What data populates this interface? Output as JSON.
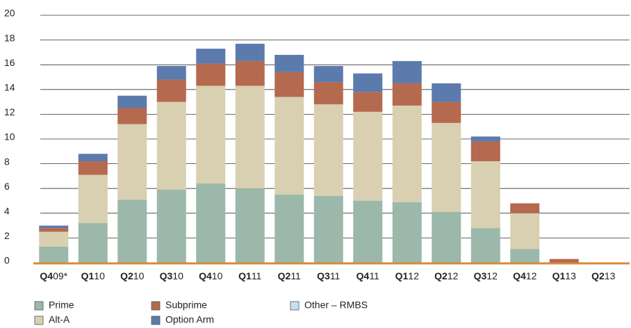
{
  "chart_data": {
    "type": "stacked_bar",
    "categories": [
      "Q409*",
      "Q110",
      "Q210",
      "Q310",
      "Q410",
      "Q111",
      "Q211",
      "Q311",
      "Q411",
      "Q112",
      "Q212",
      "Q312",
      "Q412",
      "Q113",
      "Q213"
    ],
    "series": [
      {
        "name": "Prime",
        "color": "#9bb8aa",
        "values": [
          1.3,
          3.2,
          5.1,
          5.9,
          6.4,
          6.0,
          5.5,
          5.4,
          5.0,
          4.9,
          4.1,
          2.8,
          1.1,
          0,
          0
        ]
      },
      {
        "name": "Alt-A",
        "color": "#d8d0b0",
        "values": [
          1.2,
          3.9,
          6.1,
          7.1,
          7.9,
          8.3,
          7.9,
          7.4,
          7.2,
          7.8,
          7.2,
          5.4,
          2.9,
          0,
          0
        ]
      },
      {
        "name": "Subprime",
        "color": "#b5694f",
        "values": [
          0.3,
          1.1,
          1.3,
          1.8,
          1.8,
          2.0,
          2.0,
          1.8,
          1.6,
          1.8,
          1.7,
          1.6,
          0.8,
          0.3,
          0
        ]
      },
      {
        "name": "Other – RMBS",
        "color": "#c5dff2",
        "values": [
          0,
          0,
          0,
          0,
          0,
          0,
          0,
          0,
          0,
          0,
          0,
          0,
          0,
          0,
          0
        ]
      },
      {
        "name": "Option Arm",
        "color": "#5c7bad",
        "values": [
          0.2,
          0.6,
          1.0,
          1.1,
          1.2,
          1.4,
          1.4,
          1.3,
          1.5,
          1.8,
          1.5,
          0.4,
          0,
          0,
          0
        ]
      }
    ],
    "ylim": [
      0,
      20
    ],
    "yticks": [
      0,
      2,
      4,
      6,
      8,
      10,
      12,
      14,
      16,
      18,
      20
    ],
    "grid": true
  }
}
